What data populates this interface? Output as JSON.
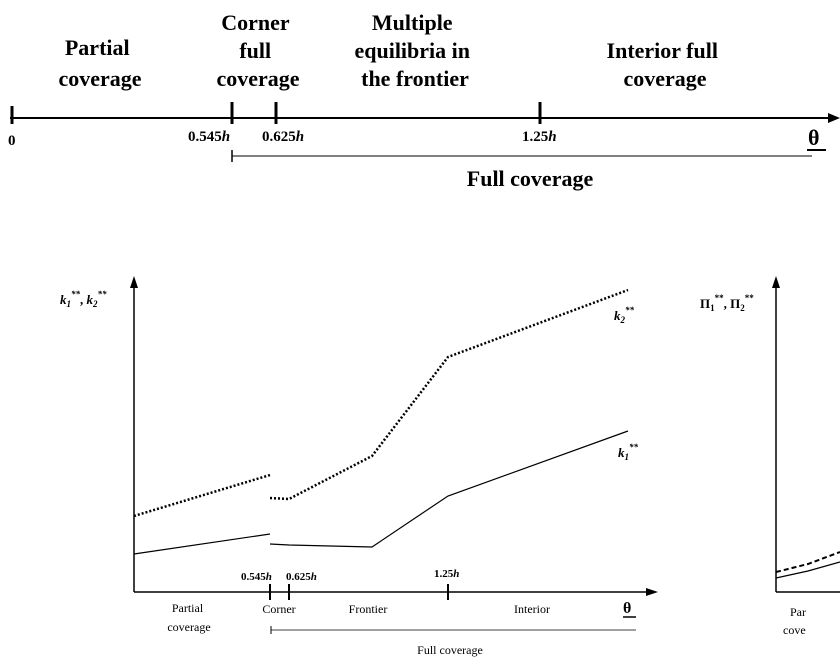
{
  "timeline": {
    "regions": [
      {
        "lines": [
          "Partial",
          "coverage"
        ]
      },
      {
        "lines": [
          "Corner",
          "full",
          "coverage"
        ]
      },
      {
        "lines": [
          "Multiple",
          "equilibria in",
          "the frontier"
        ]
      },
      {
        "lines": [
          "Interior full",
          "coverage"
        ]
      }
    ],
    "ticks": [
      "0",
      "0.545",
      "0.625",
      "1.25"
    ],
    "tick_unit": "h",
    "axis_label": "θ",
    "full_coverage_label": "Full coverage"
  },
  "left_chart": {
    "y_axis_label": {
      "base": "k",
      "sub1": "1",
      "sub2": "2",
      "sup": "**"
    },
    "curve_labels": {
      "k2": {
        "base": "k",
        "sub": "2",
        "sup": "**"
      },
      "k1": {
        "base": "k",
        "sub": "1",
        "sup": "**"
      }
    },
    "ticks": [
      "0.545",
      "0.625",
      "1.25"
    ],
    "tick_unit": "h",
    "regions": [
      {
        "lines": [
          "Partial",
          "coverage"
        ]
      },
      {
        "lines": [
          "Corner"
        ]
      },
      {
        "lines": [
          "Frontier"
        ]
      },
      {
        "lines": [
          "Interior"
        ]
      }
    ],
    "axis_label": "θ",
    "full_coverage_label": "Full coverage"
  },
  "right_chart": {
    "y_axis_label": {
      "base": "Π",
      "sub1": "1",
      "sub2": "2",
      "sup": "**"
    },
    "region_fragment": [
      "Par",
      "cove"
    ]
  }
}
